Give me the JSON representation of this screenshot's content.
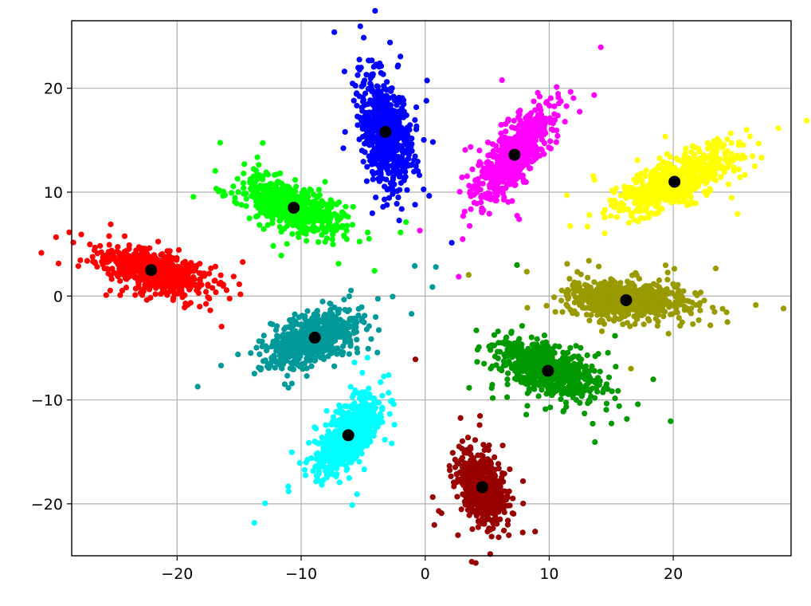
{
  "chart_data": {
    "type": "scatter",
    "title": "",
    "xlabel": "",
    "ylabel": "",
    "xlim": [
      -28.5,
      29.5
    ],
    "ylim": [
      -25,
      26.5
    ],
    "grid": true,
    "x_ticks": [
      -20,
      -10,
      0,
      10,
      20
    ],
    "y_ticks": [
      -20,
      -10,
      0,
      10,
      20
    ],
    "x_tick_labels": [
      "−20",
      "−10",
      "0",
      "10",
      "20"
    ],
    "y_tick_labels": [
      "−20",
      "−10",
      "0",
      "10",
      "20"
    ],
    "clusters": [
      {
        "color": "#ff0000",
        "centroid": [
          -22.1,
          2.5
        ],
        "spread": [
          2.2,
          1.1
        ],
        "correlation": -0.55,
        "count": 700
      },
      {
        "color": "#00ff00",
        "centroid": [
          -10.6,
          8.5
        ],
        "spread": [
          1.9,
          1.3
        ],
        "correlation": -0.6,
        "count": 650
      },
      {
        "color": "#0000ff",
        "centroid": [
          -3.2,
          15.8
        ],
        "spread": [
          1.0,
          2.6
        ],
        "correlation": -0.3,
        "count": 700
      },
      {
        "color": "#ff00ff",
        "centroid": [
          7.2,
          13.6
        ],
        "spread": [
          1.5,
          2.2
        ],
        "correlation": 0.75,
        "count": 650
      },
      {
        "color": "#ffff00",
        "centroid": [
          20.1,
          11.0
        ],
        "spread": [
          2.4,
          1.6
        ],
        "correlation": 0.7,
        "count": 650
      },
      {
        "color": "#999900",
        "centroid": [
          16.2,
          -0.4
        ],
        "spread": [
          2.4,
          0.9
        ],
        "correlation": -0.2,
        "count": 650
      },
      {
        "color": "#009900",
        "centroid": [
          9.9,
          -7.2
        ],
        "spread": [
          2.0,
          1.3
        ],
        "correlation": -0.5,
        "count": 700
      },
      {
        "color": "#990000",
        "centroid": [
          4.6,
          -18.4
        ],
        "spread": [
          0.9,
          1.7
        ],
        "correlation": -0.35,
        "count": 600
      },
      {
        "color": "#00ffff",
        "centroid": [
          -6.2,
          -13.4
        ],
        "spread": [
          1.3,
          1.8
        ],
        "correlation": 0.7,
        "count": 650
      },
      {
        "color": "#009999",
        "centroid": [
          -8.9,
          -4.0
        ],
        "spread": [
          1.9,
          1.4
        ],
        "correlation": 0.55,
        "count": 650
      }
    ],
    "centroid_color": "#000000"
  }
}
